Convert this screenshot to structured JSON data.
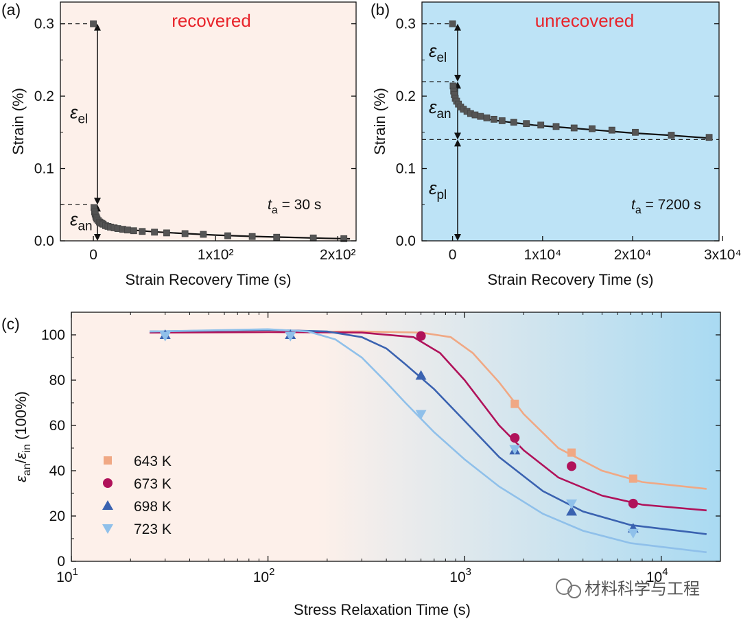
{
  "watermark": "材料科学与工程",
  "chart_data": [
    {
      "id": "a",
      "type": "scatter",
      "panel_label": "(a)",
      "annotation": "recovered",
      "xlabel": "Strain Recovery Time (s)",
      "ylabel": "Strain (%)",
      "xlim": [
        -27,
        215
      ],
      "ylim": [
        0,
        0.33
      ],
      "xticks": [
        {
          "v": 0,
          "label": "0"
        },
        {
          "v": 100,
          "label": "1x10²"
        },
        {
          "v": 200,
          "label": "2x10²"
        }
      ],
      "yticks": [
        {
          "v": 0,
          "label": "0.0"
        },
        {
          "v": 0.1,
          "label": "0.1"
        },
        {
          "v": 0.2,
          "label": "0.2"
        },
        {
          "v": 0.3,
          "label": "0.3"
        }
      ],
      "background": "#fdf0ea",
      "ta_label": "= 30 s",
      "elastic_label": "el",
      "anelastic_label": "an",
      "elastic_range": [
        0.05,
        0.3
      ],
      "anelastic_range": [
        0,
        0.05
      ],
      "points": {
        "x": [
          0,
          0.5,
          1,
          1.5,
          2,
          2.5,
          3,
          4,
          5,
          6,
          7,
          8,
          10,
          12,
          14,
          17,
          20,
          24,
          28,
          33,
          40,
          50,
          60,
          75,
          90,
          110,
          130,
          150,
          180,
          205
        ],
        "y": [
          0.3,
          0.046,
          0.04,
          0.037,
          0.034,
          0.032,
          0.03,
          0.028,
          0.026,
          0.025,
          0.024,
          0.023,
          0.021,
          0.02,
          0.019,
          0.018,
          0.017,
          0.016,
          0.015,
          0.014,
          0.013,
          0.012,
          0.011,
          0.01,
          0.009,
          0.007,
          0.006,
          0.005,
          0.004,
          0.003
        ]
      },
      "fit": {
        "x": [
          0.5,
          1,
          2,
          3,
          5,
          8,
          12,
          18,
          25,
          35,
          50,
          70,
          100,
          130,
          160,
          190,
          210
        ],
        "y": [
          0.044,
          0.04,
          0.034,
          0.031,
          0.027,
          0.024,
          0.021,
          0.018,
          0.016,
          0.0145,
          0.0125,
          0.0105,
          0.008,
          0.0062,
          0.0048,
          0.0035,
          0.0028
        ]
      }
    },
    {
      "id": "b",
      "type": "scatter",
      "panel_label": "(b)",
      "annotation": "unrecovered",
      "xlabel": "Strain Recovery Time (s)",
      "ylabel": "Strain (%)",
      "xlim": [
        -3400,
        29600
      ],
      "ylim": [
        0,
        0.33
      ],
      "xticks": [
        {
          "v": 0,
          "label": "0"
        },
        {
          "v": 10000,
          "label": "1x10⁴"
        },
        {
          "v": 20000,
          "label": "2x10⁴"
        },
        {
          "v": 30000,
          "label": "3x10⁴"
        }
      ],
      "yticks": [
        {
          "v": 0,
          "label": "0.0"
        },
        {
          "v": 0.1,
          "label": "0.1"
        },
        {
          "v": 0.2,
          "label": "0.2"
        },
        {
          "v": 0.3,
          "label": "0.3"
        }
      ],
      "background": "#bde3f6",
      "ta_label": "= 7200 s",
      "elastic_label": "el",
      "anelastic_label": "an",
      "plastic_label": "pl",
      "elastic_range": [
        0.22,
        0.3
      ],
      "anelastic_range": [
        0.14,
        0.22
      ],
      "plastic_range": [
        0,
        0.14
      ],
      "points": {
        "x": [
          0,
          60,
          120,
          200,
          300,
          450,
          650,
          900,
          1200,
          1600,
          2000,
          2500,
          3100,
          3800,
          4600,
          5500,
          6800,
          8200,
          9800,
          11500,
          13500,
          15500,
          17700,
          20300,
          24300,
          28500
        ],
        "y": [
          0.3,
          0.214,
          0.207,
          0.202,
          0.197,
          0.193,
          0.189,
          0.185,
          0.182,
          0.179,
          0.176,
          0.174,
          0.172,
          0.17,
          0.168,
          0.166,
          0.164,
          0.162,
          0.16,
          0.158,
          0.156,
          0.155,
          0.153,
          0.15,
          0.146,
          0.143
        ]
      },
      "fit": {
        "x": [
          60,
          200,
          400,
          700,
          1000,
          1500,
          2000,
          3000,
          4000,
          5000,
          7000,
          9000,
          11000,
          14000,
          17000,
          20000,
          24000,
          28500
        ],
        "y": [
          0.212,
          0.203,
          0.196,
          0.189,
          0.184,
          0.179,
          0.176,
          0.171,
          0.168,
          0.166,
          0.163,
          0.16,
          0.158,
          0.155,
          0.152,
          0.149,
          0.146,
          0.142
        ]
      }
    },
    {
      "id": "c",
      "type": "scatter",
      "panel_label": "(c)",
      "xlabel": "Stress Relaxation Time (s)",
      "ylabel": "ε_an/ε_in (100%)",
      "xscale": "log",
      "xlim": [
        10,
        20000
      ],
      "ylim": [
        0,
        110
      ],
      "xticks": [
        {
          "v": 10,
          "base": "10",
          "exp": "1"
        },
        {
          "v": 100,
          "base": "10",
          "exp": "2"
        },
        {
          "v": 1000,
          "base": "10",
          "exp": "3"
        },
        {
          "v": 10000,
          "base": "10",
          "exp": "4"
        }
      ],
      "yticks": [
        {
          "v": 0,
          "label": "0"
        },
        {
          "v": 20,
          "label": "20"
        },
        {
          "v": 40,
          "label": "40"
        },
        {
          "v": 60,
          "label": "60"
        },
        {
          "v": 80,
          "label": "80"
        },
        {
          "v": 100,
          "label": "100"
        }
      ],
      "gradient": [
        "#fdf0ea",
        "#a9daf2"
      ],
      "legend_position": "middle-left",
      "series": [
        {
          "name": "643 K",
          "marker": "square",
          "color": "#f0a884",
          "x": [
            1800,
            3500,
            7200
          ],
          "y": [
            69.5,
            48,
            36.5
          ],
          "fit": {
            "x": [
              25,
              100,
              300,
              600,
              850,
              1100,
              1500,
              2000,
              3000,
              5000,
              8000,
              17000
            ],
            "y": [
              101,
              101.3,
              101.5,
              101,
              99,
              92,
              79,
              65,
              50,
              40,
              35,
              32
            ]
          }
        },
        {
          "name": "673 K",
          "marker": "circle",
          "color": "#b0125a",
          "x": [
            600,
            1800,
            3500,
            7200
          ],
          "y": [
            99.5,
            54.5,
            42,
            25.5
          ],
          "fit": {
            "x": [
              25,
              100,
              300,
              550,
              750,
              1000,
              1500,
              2000,
              3000,
              5000,
              8000,
              17000
            ],
            "y": [
              101,
              101.2,
              101,
              99,
              92,
              80,
              60,
              49,
              37,
              29,
              25,
              22.5
            ]
          }
        },
        {
          "name": "698 K",
          "marker": "triangle-up",
          "color": "#3a62b0",
          "x": [
            30,
            130,
            600,
            1800,
            3500,
            7200
          ],
          "y": [
            100,
            100,
            82,
            49,
            22,
            14.5
          ],
          "fit": {
            "x": [
              25,
              100,
              200,
              300,
              400,
              500,
              700,
              1000,
              1500,
              2500,
              4000,
              7000,
              17000
            ],
            "y": [
              101.5,
              102.2,
              101.5,
              99,
              94,
              87,
              76,
              62,
              46,
              31,
              22,
              16,
              12
            ]
          }
        },
        {
          "name": "723 K",
          "marker": "triangle-down",
          "color": "#8fc0ea",
          "x": [
            30,
            130,
            600,
            1800,
            3500,
            7200
          ],
          "y": [
            99.5,
            99.5,
            65,
            49.5,
            25.5,
            12.5
          ],
          "fit": {
            "x": [
              25,
              100,
              160,
              220,
              300,
              400,
              500,
              700,
              1000,
              1500,
              2500,
              4000,
              7000,
              17000
            ],
            "y": [
              101.5,
              102.5,
              101.5,
              98,
              90,
              79,
              70,
              57,
              45,
              33,
              21,
              13.5,
              8,
              4
            ]
          }
        }
      ]
    }
  ]
}
